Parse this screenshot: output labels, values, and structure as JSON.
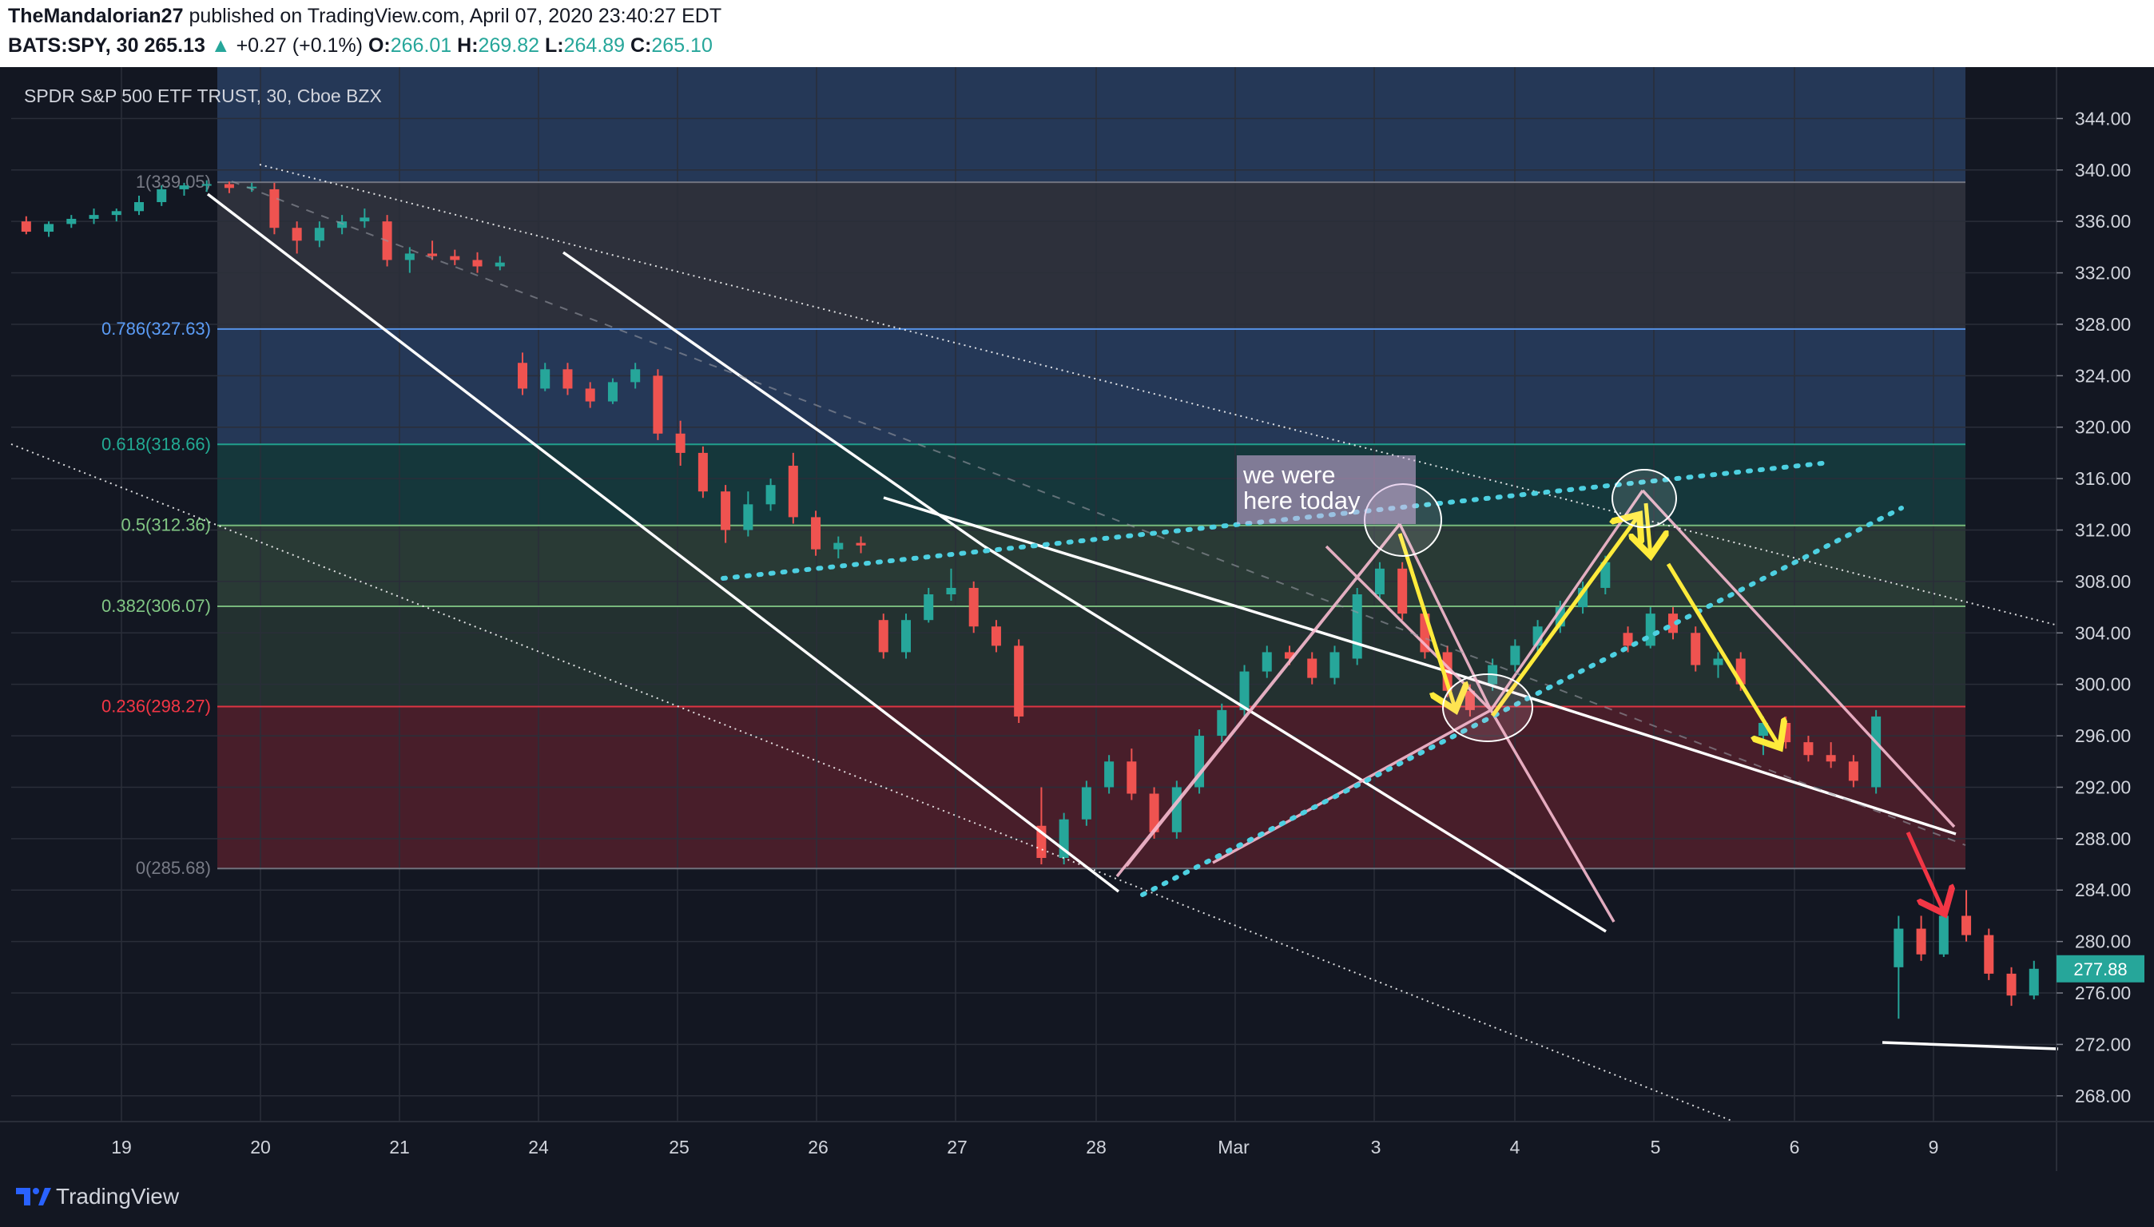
{
  "header": {
    "author": "TheMandalorian27",
    "published_text": "published on TradingView.com, April 07, 2020 23:40:27 EDT",
    "symbol": "BATS:SPY, 30",
    "last": "265.13",
    "change_arrow": "▲",
    "change": "+0.27 (+0.1%)",
    "o_label": "O:",
    "o_value": "266.01",
    "h_label": "H:",
    "h_value": "269.82",
    "l_label": "L:",
    "l_value": "264.89",
    "c_label": "C:",
    "c_value": "265.10"
  },
  "footer": {
    "brand": "TradingView"
  },
  "colors": {
    "up": "#26a69a",
    "down": "#ef5350",
    "background": "#131722"
  },
  "chart_data": {
    "type": "candlestick",
    "title": "SPDR S&P 500 ETF TRUST, 30, Cboe BZX",
    "x_ticks": [
      "19",
      "20",
      "21",
      "24",
      "25",
      "26",
      "27",
      "28",
      "Mar",
      "3",
      "4",
      "5",
      "6",
      "9"
    ],
    "y_ticks": [
      "268.00",
      "272.00",
      "276.00",
      "280.00",
      "284.00",
      "288.00",
      "292.00",
      "296.00",
      "300.00",
      "304.00",
      "308.00",
      "312.00",
      "316.00",
      "320.00",
      "324.00",
      "328.00",
      "332.00",
      "336.00",
      "340.00",
      "344.00"
    ],
    "ylim": [
      266,
      348
    ],
    "last_price": "277.88",
    "fib_levels": [
      {
        "label": "1(339.05)",
        "value": 339.05,
        "color": "#787b86"
      },
      {
        "label": "0.786(327.63)",
        "value": 327.63,
        "color": "#5b9cf6"
      },
      {
        "label": "0.618(318.66)",
        "value": 318.66,
        "color": "#22ab94"
      },
      {
        "label": "0.5(312.36)",
        "value": 312.36,
        "color": "#81c784"
      },
      {
        "label": "0.382(306.07)",
        "value": 306.07,
        "color": "#81c784"
      },
      {
        "label": "0.236(298.27)",
        "value": 298.27,
        "color": "#f23645"
      },
      {
        "label": "0(285.68)",
        "value": 285.68,
        "color": "#787b86"
      }
    ],
    "annotation": {
      "line1": "we were",
      "line2": "here today"
    },
    "candles": [
      [
        2,
        336,
        336.4,
        335,
        335.2
      ],
      [
        5,
        335.2,
        336,
        334.8,
        335.8
      ],
      [
        8,
        335.8,
        336.5,
        335.5,
        336.2
      ],
      [
        11,
        336.2,
        337,
        335.8,
        336.5
      ],
      [
        14,
        336.5,
        337,
        336,
        336.8
      ],
      [
        17,
        336.8,
        338,
        336.5,
        337.5
      ],
      [
        20,
        337.5,
        338.8,
        337.2,
        338.5
      ],
      [
        23,
        338.5,
        339,
        338,
        338.8
      ],
      [
        26,
        338.8,
        339.2,
        338.3,
        338.9
      ],
      [
        29,
        338.9,
        339.1,
        338.2,
        338.6
      ],
      [
        32,
        338.6,
        339,
        338.3,
        338.7
      ],
      [
        35,
        338.5,
        339,
        335,
        335.5
      ],
      [
        38,
        335.5,
        336,
        333.5,
        334.5
      ],
      [
        41,
        334.5,
        336,
        334,
        335.5
      ],
      [
        44,
        335.5,
        336.5,
        335,
        336
      ],
      [
        47,
        336,
        337,
        335.5,
        336.3
      ],
      [
        50,
        336,
        336.5,
        332.5,
        333
      ],
      [
        53,
        333,
        334,
        332,
        333.5
      ],
      [
        56,
        333.5,
        334.5,
        333,
        333.3
      ],
      [
        59,
        333.3,
        333.8,
        332.6,
        333
      ],
      [
        62,
        333,
        333.6,
        332,
        332.5
      ],
      [
        65,
        332.5,
        333.3,
        332.2,
        332.8
      ],
      [
        68,
        325,
        325.8,
        322.5,
        323
      ],
      [
        71,
        323,
        325,
        322.8,
        324.5
      ],
      [
        74,
        324.5,
        325,
        322.5,
        323
      ],
      [
        77,
        323,
        323.5,
        321.5,
        322
      ],
      [
        80,
        322,
        323.8,
        321.8,
        323.5
      ],
      [
        83,
        323.5,
        325,
        323,
        324.5
      ],
      [
        86,
        324,
        324.5,
        319,
        319.5
      ],
      [
        89,
        319.5,
        320.5,
        317,
        318
      ],
      [
        92,
        318,
        318.5,
        314.5,
        315
      ],
      [
        95,
        315,
        315.5,
        311,
        312
      ],
      [
        98,
        312,
        315,
        311.5,
        314
      ],
      [
        101,
        314,
        316,
        313.5,
        315.5
      ],
      [
        104,
        317,
        318,
        312.5,
        313
      ],
      [
        107,
        313,
        313.5,
        310,
        310.5
      ],
      [
        110,
        310.5,
        311.5,
        309.8,
        311
      ],
      [
        113,
        311,
        311.5,
        310.2,
        310.8
      ],
      [
        116,
        305,
        305.5,
        302,
        302.5
      ],
      [
        119,
        302.5,
        305.5,
        302,
        305
      ],
      [
        122,
        305,
        307.5,
        304.8,
        307
      ],
      [
        125,
        307,
        309,
        306.5,
        307.5
      ],
      [
        128,
        307.5,
        308,
        304,
        304.5
      ],
      [
        131,
        304.5,
        305,
        302.5,
        303
      ],
      [
        134,
        303,
        303.5,
        297,
        297.5
      ],
      [
        137,
        289,
        292,
        286,
        286.5
      ],
      [
        140,
        286.5,
        290,
        286,
        289.5
      ],
      [
        143,
        289.5,
        292.5,
        289,
        292
      ],
      [
        146,
        292,
        294.5,
        291.5,
        294
      ],
      [
        149,
        294,
        295,
        291,
        291.5
      ],
      [
        152,
        291.5,
        292,
        288,
        288.5
      ],
      [
        155,
        288.5,
        292.5,
        288,
        292
      ],
      [
        158,
        292,
        296.5,
        291.5,
        296
      ],
      [
        161,
        296,
        298.5,
        295.5,
        298
      ],
      [
        164,
        298,
        301.5,
        297.5,
        301
      ],
      [
        167,
        301,
        303,
        300.5,
        302.5
      ],
      [
        170,
        302.5,
        303,
        301.5,
        302
      ],
      [
        173,
        302,
        302.5,
        300,
        300.5
      ],
      [
        176,
        300.5,
        303,
        300,
        302.5
      ],
      [
        179,
        302,
        307.5,
        301.5,
        307
      ],
      [
        182,
        307,
        309.5,
        306.5,
        309
      ],
      [
        185,
        309,
        309.5,
        305,
        305.5
      ],
      [
        188,
        305.5,
        306,
        302,
        302.5
      ],
      [
        191,
        302.5,
        303,
        299,
        299.5
      ],
      [
        194,
        299.5,
        300,
        297.5,
        298
      ],
      [
        197,
        300,
        302,
        299.5,
        301.5
      ],
      [
        200,
        301.5,
        303.5,
        301,
        303
      ],
      [
        203,
        303,
        305,
        302.5,
        304.5
      ],
      [
        206,
        304.5,
        306.5,
        304,
        306
      ],
      [
        209,
        306,
        308,
        305.5,
        307.5
      ],
      [
        212,
        307.5,
        310,
        307,
        309.5
      ],
      [
        215,
        304,
        304.5,
        302.5,
        303
      ],
      [
        218,
        303,
        306,
        302.8,
        305.5
      ],
      [
        221,
        305.5,
        306,
        303.5,
        304
      ],
      [
        224,
        304,
        304.5,
        301,
        301.5
      ],
      [
        227,
        301.5,
        302.5,
        300.5,
        302
      ],
      [
        230,
        302,
        302.5,
        299.5,
        300
      ],
      [
        233,
        296,
        297.5,
        294.5,
        297
      ],
      [
        236,
        297,
        297.5,
        295,
        295.5
      ],
      [
        239,
        295.5,
        296,
        294,
        294.5
      ],
      [
        242,
        294.5,
        295.5,
        293.5,
        294
      ],
      [
        245,
        294,
        294.5,
        292,
        292.5
      ],
      [
        248,
        292,
        298,
        291.5,
        297.5
      ],
      [
        251,
        278,
        282,
        274,
        281
      ],
      [
        254,
        281,
        282,
        278.5,
        279
      ],
      [
        257,
        279,
        282.5,
        278.8,
        282
      ],
      [
        260,
        282,
        284,
        280,
        280.5
      ],
      [
        263,
        280.5,
        281,
        277,
        277.5
      ],
      [
        266,
        277.5,
        278,
        275,
        275.8
      ],
      [
        269,
        275.8,
        278.5,
        275.5,
        277.88
      ]
    ]
  }
}
